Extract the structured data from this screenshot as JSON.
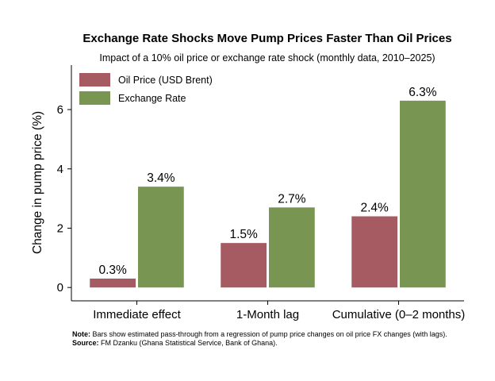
{
  "chart_data": {
    "type": "bar",
    "title": "Exchange Rate Shocks Move Pump Prices Faster Than Oil Prices",
    "subtitle": "Impact of a 10% oil price or exchange rate shock (monthly data, 2010–2025)",
    "xlabel": "",
    "ylabel": "Change in pump price (%)",
    "ylim": [
      -0.45,
      7.5
    ],
    "yticks": [
      0,
      2,
      4,
      6
    ],
    "categories": [
      "Immediate effect",
      "1-Month lag",
      "Cumulative (0–2 months)"
    ],
    "series": [
      {
        "name": "Oil Price (USD Brent)",
        "color": "#a65b62",
        "values": [
          0.3,
          1.5,
          2.4
        ],
        "labels": [
          "0.3%",
          "1.5%",
          "2.4%"
        ]
      },
      {
        "name": "Exchange Rate",
        "color": "#789552",
        "values": [
          3.4,
          2.7,
          6.3
        ],
        "labels": [
          "3.4%",
          "2.7%",
          "6.3%"
        ]
      }
    ],
    "legend_position": "top-left",
    "grid": false
  },
  "note": {
    "note_label": "Note:",
    "note_text": "Bars show estimated pass-through from a regression of pump price changes on oil price FX changes (with lags).",
    "source_label": "Source:",
    "source_text": "FM Dzanku (Ghana Statistical Service, Bank of Ghana)."
  }
}
